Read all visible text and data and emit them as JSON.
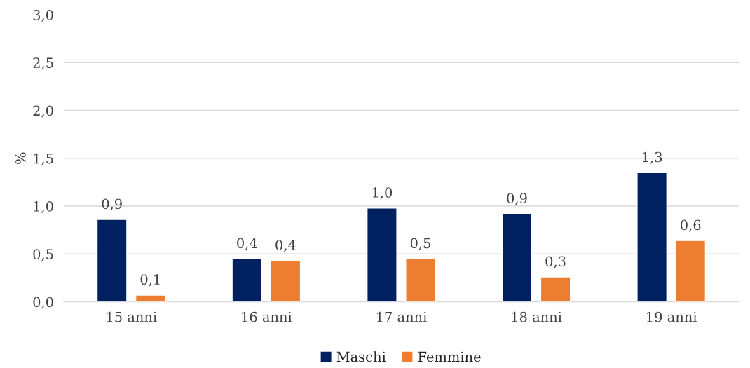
{
  "chart_data": {
    "type": "bar",
    "ylabel": "%",
    "categories": [
      "15 anni",
      "16 anni",
      "17 anni",
      "18 anni",
      "19 anni"
    ],
    "series": [
      {
        "name": "Maschi",
        "color": "#002060",
        "values": [
          0.86,
          0.45,
          0.98,
          0.92,
          1.35
        ],
        "value_labels": [
          "0,9",
          "0,4",
          "1,0",
          "0,9",
          "1,3"
        ]
      },
      {
        "name": "Femmine",
        "color": "#ed7d31",
        "values": [
          0.07,
          0.43,
          0.45,
          0.26,
          0.64
        ],
        "value_labels": [
          "0,1",
          "0,4",
          "0,5",
          "0,3",
          "0,6"
        ]
      }
    ],
    "ylim": [
      0,
      3.0
    ],
    "yticks": [
      {
        "value": 0,
        "label": "0,0"
      },
      {
        "value": 0.5,
        "label": "0,5"
      },
      {
        "value": 1.0,
        "label": "1,0"
      },
      {
        "value": 1.5,
        "label": "1,5"
      },
      {
        "value": 2.0,
        "label": "2,0"
      },
      {
        "value": 2.5,
        "label": "2,5"
      },
      {
        "value": 3.0,
        "label": "3,0"
      }
    ],
    "grid": "y",
    "legend": "bottom"
  }
}
